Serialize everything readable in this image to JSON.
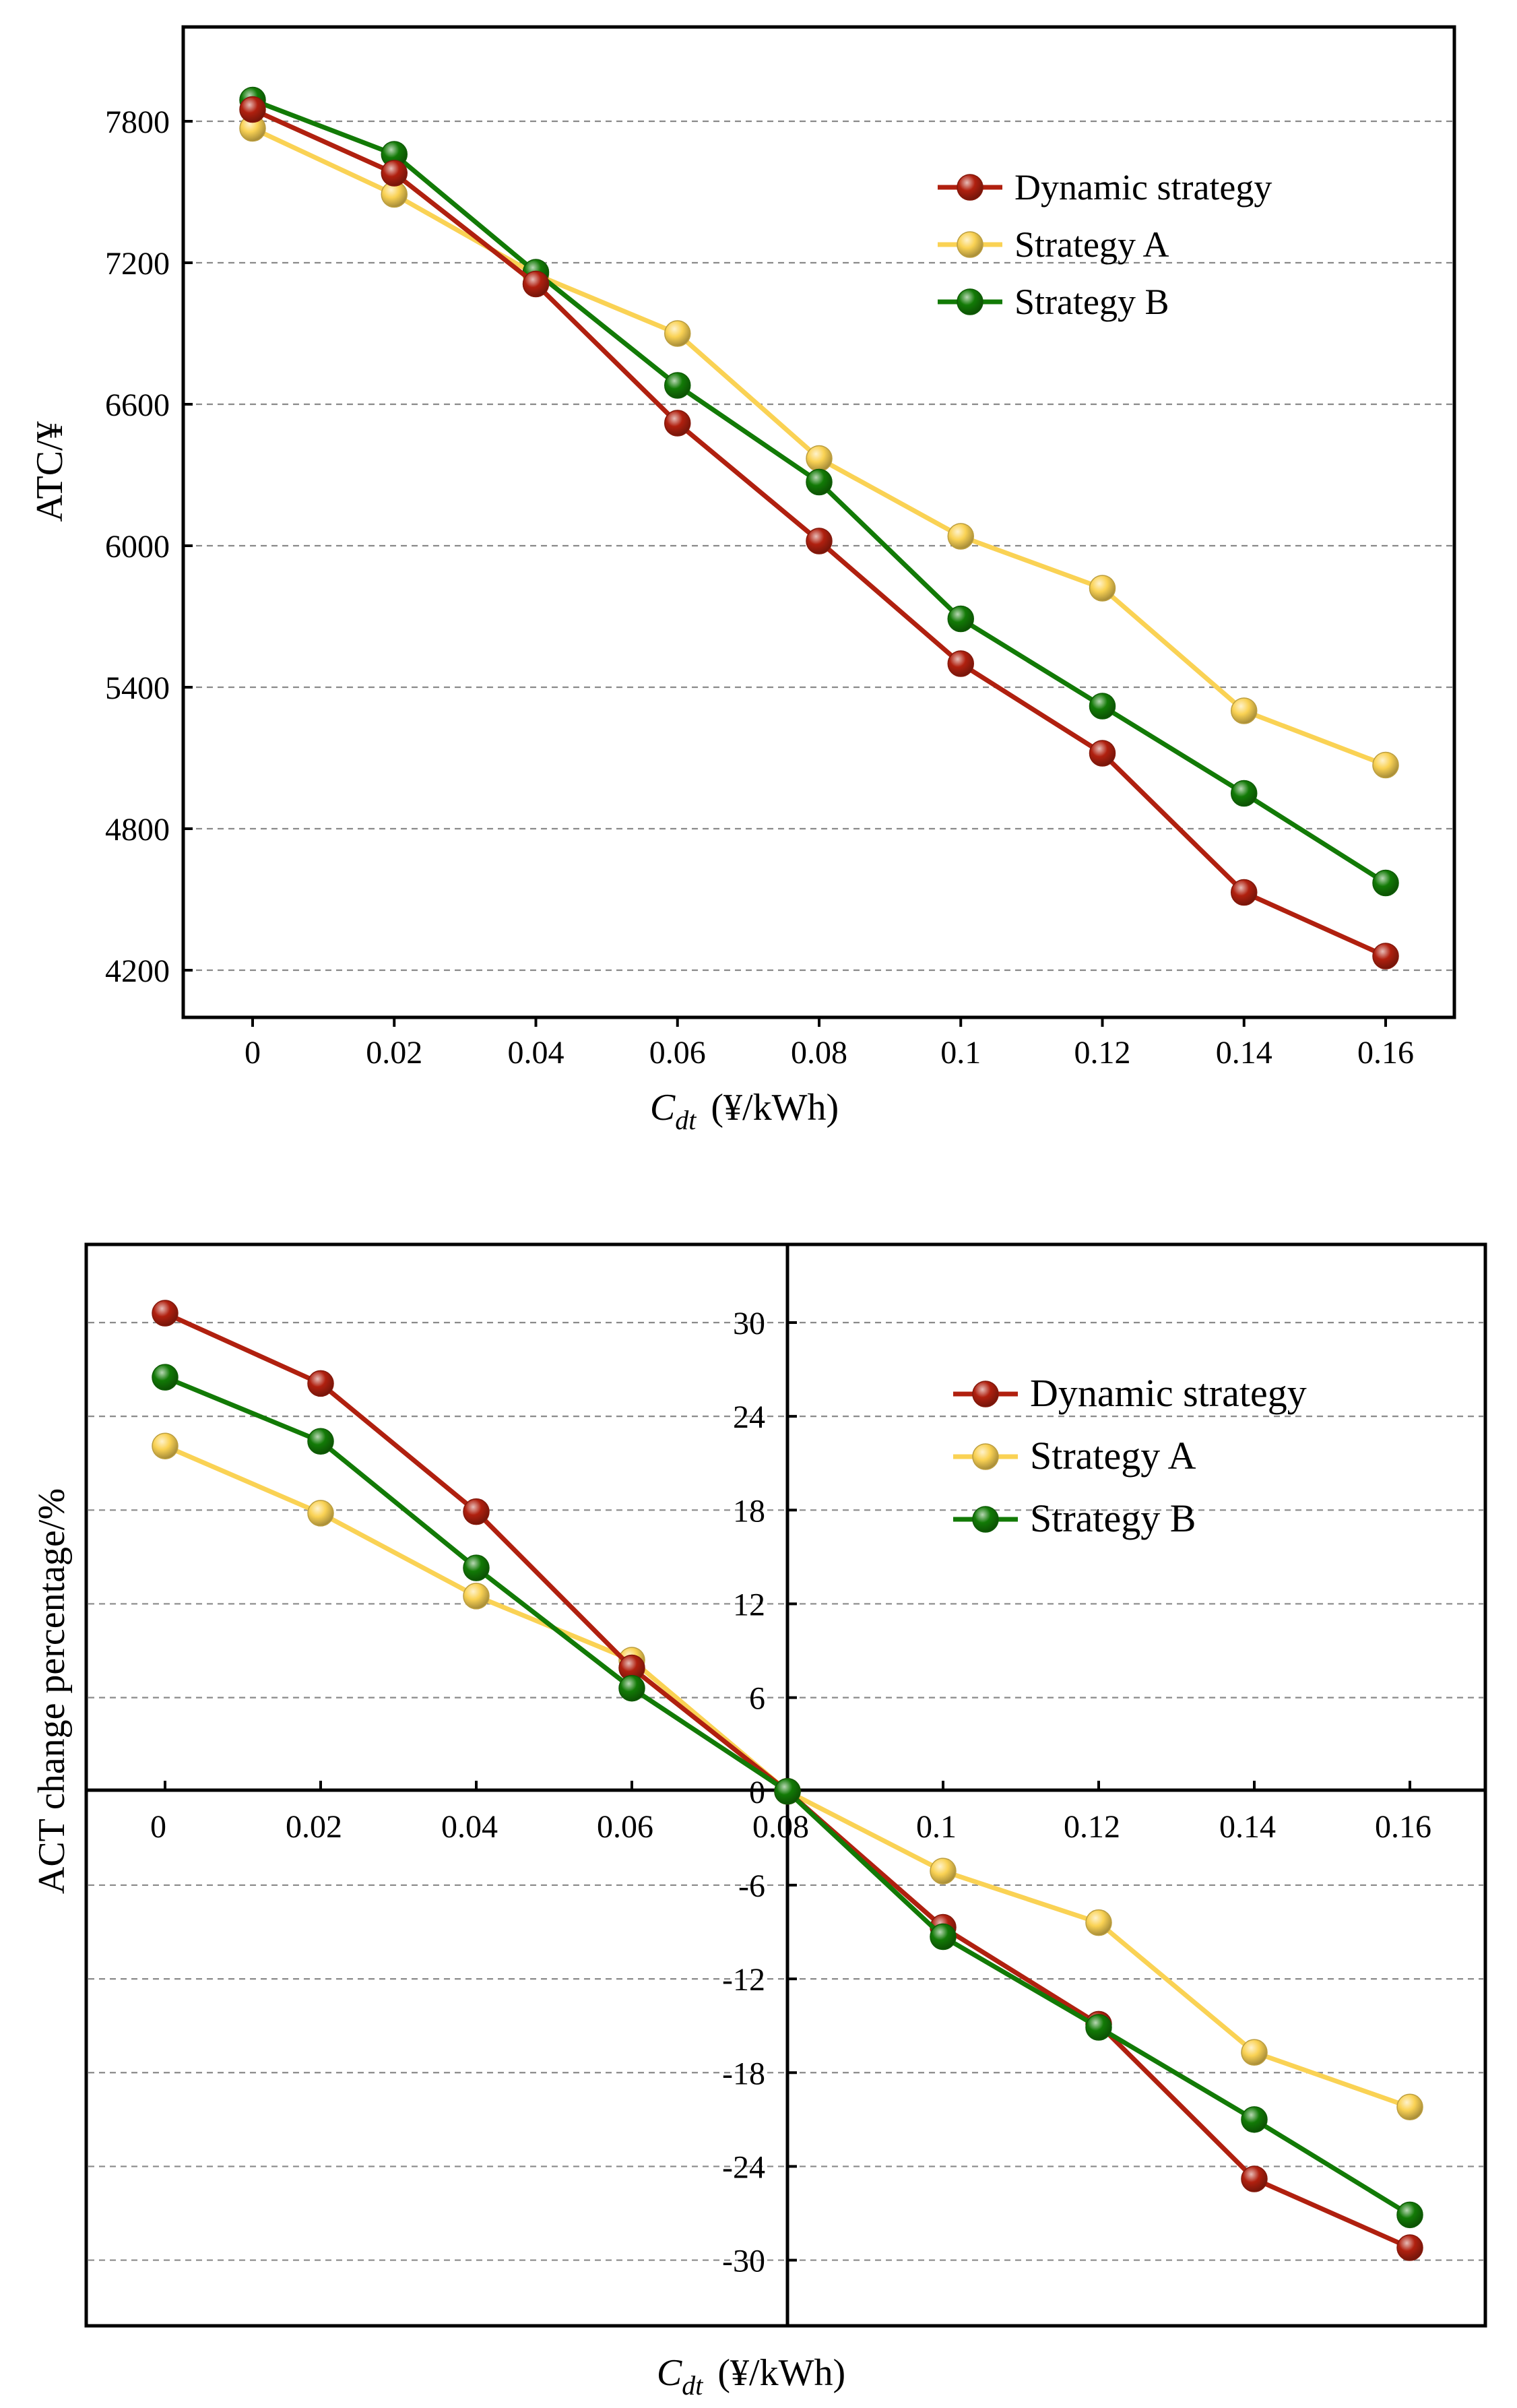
{
  "chart_data": [
    {
      "type": "line",
      "title": "",
      "xlabel": "(¥/kWh)",
      "xlabel_symbol": "C",
      "xlabel_subscript": "dt",
      "ylabel": "ATC/¥",
      "categories": [
        "0",
        "0.02",
        "0.04",
        "0.06",
        "0.08",
        "0.1",
        "0.12",
        "0.14",
        "0.16"
      ],
      "x": [
        0,
        0.02,
        0.04,
        0.06,
        0.08,
        0.1,
        0.12,
        0.14,
        0.16
      ],
      "yticks": [
        4200,
        4800,
        5400,
        6000,
        6600,
        7200,
        7800
      ],
      "ytick_labels": [
        "4200",
        "4800",
        "5400",
        "6000",
        "6600",
        "7200",
        "7800"
      ],
      "ylim": [
        4000,
        8200
      ],
      "grid": "horizontal dashed",
      "legend_position": "top-right",
      "series": [
        {
          "name": "Dynamic strategy",
          "color": "#b0200f",
          "values": [
            7850,
            7580,
            7110,
            6520,
            6020,
            5500,
            5120,
            4530,
            4260
          ]
        },
        {
          "name": "Strategy A",
          "color": "#fad254",
          "values": [
            7770,
            7490,
            7150,
            6900,
            6370,
            6040,
            5820,
            5300,
            5070
          ]
        },
        {
          "name": "Strategy B",
          "color": "#127a06",
          "values": [
            7890,
            7660,
            7160,
            6680,
            6270,
            5690,
            5320,
            4950,
            4570
          ]
        }
      ]
    },
    {
      "type": "line",
      "title": "",
      "xlabel": "(¥/kWh)",
      "xlabel_symbol": "C",
      "xlabel_subscript": "dt",
      "ylabel": "ACT change percentage/%",
      "categories": [
        "0",
        "0.02",
        "0.04",
        "0.06",
        "0.08",
        "0.1",
        "0.12",
        "0.14",
        "0.16"
      ],
      "x": [
        0,
        0.02,
        0.04,
        0.06,
        0.08,
        0.1,
        0.12,
        0.14,
        0.16
      ],
      "yticks": [
        30,
        24,
        18,
        12,
        6,
        0,
        -6,
        -12,
        -18,
        -24,
        -30
      ],
      "ytick_labels": [
        "30",
        "24",
        "18",
        "12",
        "6",
        "0",
        "-6",
        "-12",
        "-18",
        "-24",
        "-30"
      ],
      "ylim": [
        -34.2,
        35
      ],
      "grid": "horizontal dashed",
      "legend_position": "top-right",
      "axes_cross_at": {
        "x": 0.08,
        "y": 0
      },
      "series": [
        {
          "name": "Dynamic strategy",
          "color": "#b0200f",
          "values": [
            30.6,
            26.1,
            17.9,
            7.9,
            0,
            -8.7,
            -14.9,
            -24.8,
            -29.2
          ]
        },
        {
          "name": "Strategy A",
          "color": "#fad254",
          "values": [
            22.1,
            17.8,
            12.5,
            8.4,
            0,
            -5.1,
            -8.4,
            -16.7,
            -20.2
          ]
        },
        {
          "name": "Strategy B",
          "color": "#127a06",
          "values": [
            26.5,
            22.4,
            14.3,
            6.6,
            0,
            -9.3,
            -15.1,
            -21.0,
            -27.1
          ]
        }
      ]
    }
  ]
}
